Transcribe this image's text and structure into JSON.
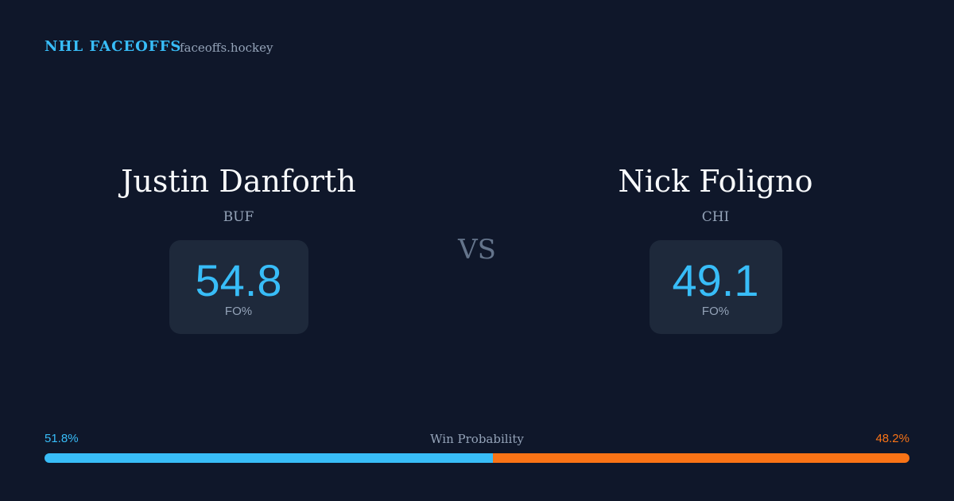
{
  "header": {
    "brand": "NHL FACEOFFS",
    "site": "faceoffs.hockey"
  },
  "players": [
    {
      "name": "Justin Danforth",
      "team": "BUF",
      "fo_pct": 54.8,
      "fo_label": "FO%"
    },
    {
      "name": "Nick Foligno",
      "team": "CHI",
      "fo_pct": 49.1,
      "fo_label": "FO%"
    }
  ],
  "vs": "VS",
  "win_probability": {
    "label": "Win Probability",
    "left": {
      "value": 51.8,
      "label": "51.8%",
      "color": "#38bdf8"
    },
    "right": {
      "value": 48.2,
      "label": "48.2%",
      "color": "#f97316"
    }
  }
}
